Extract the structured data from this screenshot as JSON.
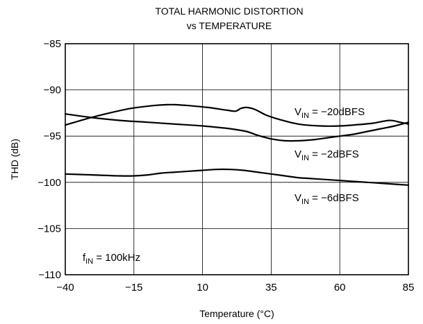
{
  "chart_data": {
    "type": "line",
    "title": [
      "TOTAL HARMONIC DISTORTION",
      "vs TEMPERATURE"
    ],
    "xlabel": "Temperature (°C)",
    "ylabel": "THD (dB)",
    "xlim": [
      -40,
      85
    ],
    "ylim": [
      -110,
      -85
    ],
    "xticks": [
      -40,
      -15,
      10,
      35,
      60,
      85
    ],
    "yticks": [
      -85,
      -90,
      -95,
      -100,
      -105,
      -110
    ],
    "xtick_labels": [
      "−40",
      "−15",
      "10",
      "35",
      "60",
      "85"
    ],
    "ytick_labels": [
      "−85",
      "−90",
      "−95",
      "−100",
      "−105",
      "−110"
    ],
    "grid": true,
    "series": [
      {
        "name": "V_IN = −20dBFS",
        "label_main": "V",
        "label_sub": "IN",
        "label_rest": " = −20dBFS",
        "x": [
          -40,
          -32,
          -24,
          -16,
          -8,
          -3,
          0,
          5,
          12,
          19,
          22,
          24,
          26,
          29,
          33,
          38,
          45,
          53,
          60,
          65,
          72,
          78,
          82,
          85
        ],
        "y": [
          -93.8,
          -93.1,
          -92.5,
          -92.0,
          -91.7,
          -91.6,
          -91.6,
          -91.7,
          -91.9,
          -92.2,
          -92.3,
          -92.0,
          -91.9,
          -92.1,
          -92.7,
          -93.2,
          -93.7,
          -93.9,
          -93.9,
          -93.8,
          -93.6,
          -93.3,
          -93.5,
          -93.7
        ]
      },
      {
        "name": "V_IN = −2dBFS",
        "label_main": "V",
        "label_sub": "IN",
        "label_rest": " = −2dBFS",
        "x": [
          -40,
          -30,
          -20,
          -10,
          0,
          10,
          20,
          26,
          30,
          35,
          40,
          45,
          50,
          55,
          60,
          65,
          70,
          75,
          80,
          85
        ],
        "y": [
          -92.6,
          -93.0,
          -93.3,
          -93.5,
          -93.7,
          -93.9,
          -94.2,
          -94.5,
          -94.9,
          -95.3,
          -95.5,
          -95.5,
          -95.4,
          -95.2,
          -95.0,
          -94.8,
          -94.5,
          -94.2,
          -93.9,
          -93.5
        ]
      },
      {
        "name": "V_IN = −6dBFS",
        "label_main": "V",
        "label_sub": "IN",
        "label_rest": " = −6dBFS",
        "x": [
          -40,
          -30,
          -20,
          -15,
          -10,
          -5,
          0,
          5,
          10,
          15,
          20,
          25,
          30,
          35,
          40,
          45,
          50,
          55,
          60,
          65,
          70,
          75,
          80,
          85
        ],
        "y": [
          -99.1,
          -99.2,
          -99.3,
          -99.3,
          -99.2,
          -99.0,
          -98.9,
          -98.8,
          -98.7,
          -98.6,
          -98.6,
          -98.7,
          -98.9,
          -99.1,
          -99.3,
          -99.5,
          -99.6,
          -99.7,
          -99.8,
          -99.9,
          -100.0,
          -100.1,
          -100.2,
          -100.3
        ]
      }
    ],
    "annotations": [
      {
        "main": "f",
        "sub": "IN",
        "rest": " = 100kHz"
      }
    ]
  }
}
